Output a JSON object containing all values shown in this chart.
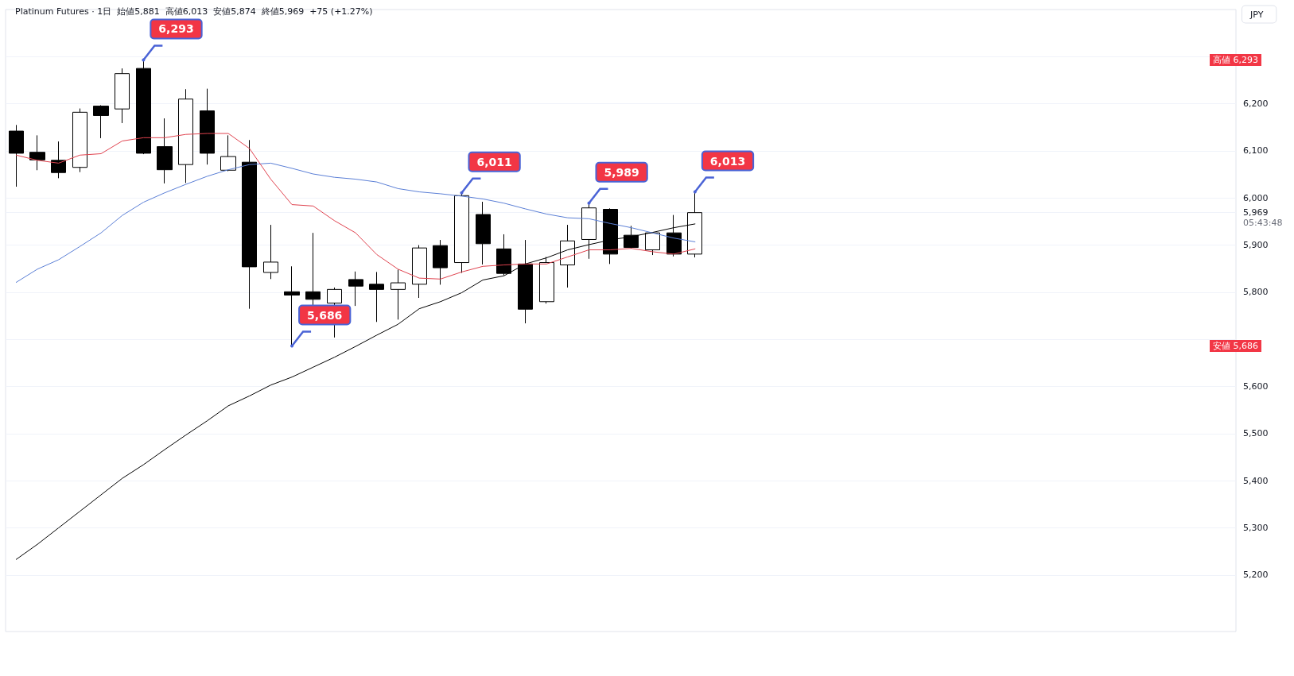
{
  "chart_data": {
    "type": "candlestick",
    "title": "Platinum Futures · 1日  始値5,881  高値6,013  安値5,874  終値5,969  +75 (+1.27%)",
    "categories": [
      null,
      null,
      null,
      null,
      null,
      null,
      null,
      null,
      null,
      null,
      null,
      null,
      null,
      null,
      null,
      null,
      null,
      null,
      null,
      null,
      null,
      null,
      null,
      null,
      null,
      null,
      null,
      null,
      null,
      null,
      null,
      null,
      null
    ],
    "color": "#000000",
    "ohlc": [
      [
        6142,
        6155,
        6024,
        6095
      ],
      [
        6097,
        6133,
        6059,
        6081
      ],
      [
        6080,
        6120,
        6042,
        6054
      ],
      [
        6065,
        6190,
        6055,
        6182
      ],
      [
        6195,
        6197,
        6127,
        6175
      ],
      [
        6189,
        6275,
        6159,
        6264
      ],
      [
        6275,
        6293,
        6093,
        6095
      ],
      [
        6109,
        6169,
        6031,
        6060
      ],
      [
        6071,
        6231,
        6032,
        6210
      ],
      [
        6185,
        6232,
        6071,
        6095
      ],
      [
        6059,
        6133,
        6057,
        6088
      ],
      [
        6076,
        6123,
        5765,
        5854
      ],
      [
        5842,
        5943,
        5828,
        5864
      ],
      [
        5801,
        5855,
        5686,
        5794
      ],
      [
        5801,
        5926,
        5770,
        5785
      ],
      [
        5777,
        5810,
        5704,
        5806
      ],
      [
        5827,
        5844,
        5771,
        5813
      ],
      [
        5817,
        5843,
        5737,
        5806
      ],
      [
        5806,
        5848,
        5742,
        5820
      ],
      [
        5817,
        5900,
        5788,
        5894
      ],
      [
        5899,
        5911,
        5816,
        5852
      ],
      [
        5863,
        6011,
        5841,
        6005
      ],
      [
        5965,
        5992,
        5859,
        5903
      ],
      [
        5892,
        5923,
        5836,
        5840
      ],
      [
        5860,
        5911,
        5734,
        5764
      ],
      [
        5780,
        5875,
        5776,
        5863
      ],
      [
        5858,
        5943,
        5810,
        5909
      ],
      [
        5912,
        5989,
        5871,
        5979
      ],
      [
        5976,
        5978,
        5860,
        5881
      ],
      [
        5921,
        5941,
        5893,
        5895
      ],
      [
        5890,
        5926,
        5879,
        5926
      ],
      [
        5926,
        5964,
        5876,
        5881
      ],
      [
        5881,
        6013,
        5874,
        5969
      ]
    ],
    "series": [
      {
        "type": "line",
        "color": "#000000",
        "values": [
          5233,
          5265,
          5300,
          5335,
          5370,
          5405,
          5434,
          5466,
          5497,
          5527,
          5559,
          5580,
          5603,
          5620,
          5641,
          5662,
          5685,
          5709,
          5732,
          5765,
          5780,
          5799,
          5826,
          5835,
          5860,
          5873,
          5890,
          5901,
          5911,
          5918,
          5927,
          5937,
          5945
        ]
      },
      {
        "type": "line",
        "color": "#5b7fd6",
        "values": [
          5821,
          5849,
          5869,
          5897,
          5926,
          5963,
          5991,
          6011,
          6029,
          6046,
          6060,
          6071,
          6074,
          6063,
          6051,
          6044,
          6040,
          6034,
          6020,
          6013,
          6009,
          6004,
          5998,
          5989,
          5977,
          5966,
          5958,
          5956,
          5946,
          5937,
          5926,
          5915,
          5907
        ]
      },
      {
        "type": "line",
        "color": "#e0434f",
        "values": [
          6091,
          6080,
          6074,
          6091,
          6094,
          6121,
          6128,
          6128,
          6135,
          6137,
          6137,
          6105,
          6040,
          5986,
          5983,
          5952,
          5926,
          5880,
          5849,
          5830,
          5828,
          5843,
          5855,
          5858,
          5860,
          5860,
          5875,
          5890,
          5890,
          5893,
          5886,
          5881,
          5892
        ]
      }
    ],
    "ylim": [
      5080,
      6400
    ],
    "yticks": [
      {
        "value": 5200,
        "label": "5,200"
      },
      {
        "value": 5300,
        "label": "5,300"
      },
      {
        "value": 5400,
        "label": "5,400"
      },
      {
        "value": 5500,
        "label": "5,500"
      },
      {
        "value": 5600,
        "label": "5,600"
      },
      {
        "value": 5700,
        "label": null
      },
      {
        "value": 5800,
        "label": "5,800"
      },
      {
        "value": 5900,
        "label": "5,900"
      },
      {
        "value": 5969,
        "label": "5,969"
      },
      {
        "value": 6000,
        "label": "6,000"
      },
      {
        "value": 6100,
        "label": "6,100"
      },
      {
        "value": 6200,
        "label": "6,200"
      },
      {
        "value": 6300,
        "label": null
      }
    ],
    "grid": "y",
    "marker": "none",
    "tick_labels": "y",
    "annotations": [
      "6,293",
      "5,686",
      "6,011",
      "5,989",
      "6,013",
      "JPY",
      "高値 6,293",
      "安値 5,686",
      "05:43:48"
    ]
  }
}
